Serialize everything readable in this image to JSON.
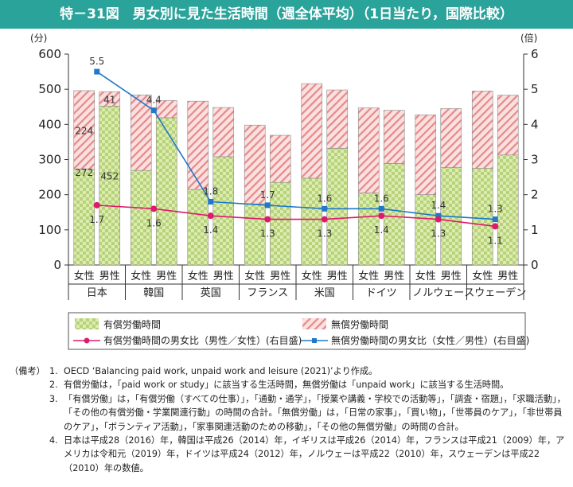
{
  "title": "特－31図　男女別に見た生活時間（週全体平均）（1日当たり，国際比較）",
  "colors": {
    "title_bg": "#2aa39a",
    "paid_fill": "#dcebb0",
    "paid_dot": "#b7d37a",
    "unpaid_fill": "#fbe0e0",
    "unpaid_stripe": "#e58a8a",
    "paid_ratio_line": "#e0196b",
    "unpaid_ratio_line": "#1f78c9"
  },
  "chart_data": {
    "type": "bar",
    "stacked": true,
    "left_unit": "(分)",
    "right_unit": "(倍)",
    "ylim": [
      0,
      600
    ],
    "y2lim": [
      0,
      6
    ],
    "yticks": [
      "0",
      "100",
      "200",
      "300",
      "400",
      "500",
      "600"
    ],
    "y2ticks": [
      "0",
      "1",
      "2",
      "3",
      "4",
      "5",
      "6"
    ],
    "countries": [
      "日本",
      "韓国",
      "英国",
      "フランス",
      "米国",
      "ドイツ",
      "ノルウェー",
      "スウェーデン"
    ],
    "genders": [
      "女性",
      "男性"
    ],
    "series": [
      {
        "name": "有償労働時間",
        "female": [
          272,
          269,
          215,
          174,
          247,
          205,
          200,
          275
        ],
        "male": [
          452,
          419,
          308,
          235,
          332,
          289,
          277,
          313
        ]
      },
      {
        "name": "無償労働時間",
        "female": [
          224,
          215,
          251,
          224,
          269,
          242,
          227,
          220
        ],
        "male": [
          41,
          49,
          140,
          134,
          166,
          151,
          168,
          170
        ]
      }
    ],
    "ratio_series": [
      {
        "name": "有償労働時間の男女比（男性／女性）(右目盛)",
        "values": [
          1.7,
          1.6,
          1.4,
          1.3,
          1.3,
          1.4,
          1.3,
          1.1
        ]
      },
      {
        "name": "無償労働時間の男女比（女性／男性）(右目盛)",
        "values": [
          5.5,
          4.4,
          1.8,
          1.7,
          1.6,
          1.6,
          1.4,
          1.3
        ]
      }
    ],
    "bar_labels": {
      "paid_female_japan": "272",
      "paid_male_japan": "452",
      "unpaid_female_japan": "224",
      "unpaid_male_japan": "41"
    },
    "grid": false,
    "legend_position": "bottom"
  },
  "notes": {
    "head": "（備考）",
    "items": [
      {
        "num": "1.",
        "text": "OECD ‘Balancing paid work, unpaid work and leisure (2021)’より作成。"
      },
      {
        "num": "2.",
        "text": "有償労働は，「paid work or study」に該当する生活時間，無償労働は「unpaid work」に該当する生活時間。"
      },
      {
        "num": "3.",
        "text": "「有償労働」は，「有償労働（すべての仕事）」，「通勤・通学」，「授業や講義・学校での活動等」，「調査・宿題」，「求職活動」，「その他の有償労働・学業関連行動」の時間の合計。「無償労働」は，「日常の家事」，「買い物」，「世帯員のケア」，「非世帯員のケア」，「ボランティア活動」，「家事関連活動のための移動」，「その他の無償労働」の時間の合計。"
      },
      {
        "num": "4.",
        "text": "日本は平成28（2016）年，韓国は平成26（2014）年，イギリスは平成26（2014）年，フランスは平成21（2009）年，アメリカは令和元（2019）年，ドイツは平成24（2012）年，ノルウェーは平成22（2010）年，スウェーデンは平成22（2010）年の数値。"
      }
    ]
  }
}
